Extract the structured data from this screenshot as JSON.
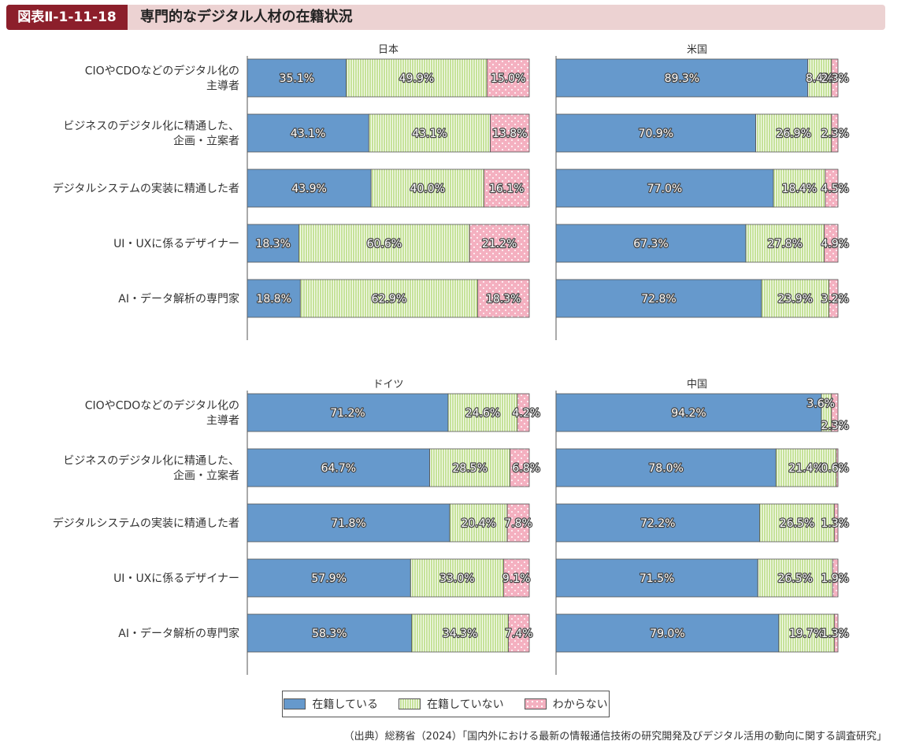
{
  "header": {
    "figure_number": "図表Ⅱ-1-11-18",
    "title": "専門的なデジタル人材の在籍状況"
  },
  "legend": [
    "在籍している",
    "在籍していない",
    "わからない"
  ],
  "source": "（出典）総務省（2024）「国内外における最新の情報通信技術の研究開発及びデジタル活用の動向に関する調査研究」",
  "colors": {
    "present": "#6699cc",
    "absent": "#c6e29a",
    "unknown": "#f4b0c0",
    "border": "#555555"
  },
  "chart_data": {
    "type": "bar",
    "orientation": "horizontal",
    "stacked": true,
    "unit": "%",
    "categories": [
      [
        "CIOやCDOなどのデジタル化の",
        "主導者"
      ],
      [
        "ビジネスのデジタル化に精通した、",
        "企画・立案者"
      ],
      [
        "デジタルシステムの実装に精通した者"
      ],
      [
        "UI・UXに係るデザイナー"
      ],
      [
        "AI・データ解析の専門家"
      ]
    ],
    "series_names": [
      "在籍している",
      "在籍していない",
      "わからない"
    ],
    "panels": [
      {
        "title": "日本",
        "values": [
          [
            35.1,
            49.9,
            15.0
          ],
          [
            43.1,
            43.1,
            13.8
          ],
          [
            43.9,
            40.0,
            16.1
          ],
          [
            18.3,
            60.6,
            21.2
          ],
          [
            18.8,
            62.9,
            18.3
          ]
        ],
        "labels": [
          [
            "35.1%",
            "49.9%",
            "15.0%"
          ],
          [
            "43.1%",
            "43.1%",
            "13.8%"
          ],
          [
            "43.9%",
            "40.0%",
            "16.1%"
          ],
          [
            "18.3%",
            "60.6%",
            "21.2%"
          ],
          [
            "18.8%",
            "62.9%",
            "18.3%"
          ]
        ]
      },
      {
        "title": "米国",
        "values": [
          [
            89.3,
            8.4,
            2.3
          ],
          [
            70.9,
            26.9,
            2.3
          ],
          [
            77.0,
            18.4,
            4.5
          ],
          [
            67.3,
            27.8,
            4.9
          ],
          [
            72.8,
            23.9,
            3.2
          ]
        ],
        "labels": [
          [
            "89.3%",
            "8.4%",
            "2.3%"
          ],
          [
            "70.9%",
            "26.9%",
            "2.3%"
          ],
          [
            "77.0%",
            "18.4%",
            "4.5%"
          ],
          [
            "67.3%",
            "27.8%",
            "4.9%"
          ],
          [
            "72.8%",
            "23.9%",
            "3.2%"
          ]
        ]
      },
      {
        "title": "ドイツ",
        "values": [
          [
            71.2,
            24.6,
            4.2
          ],
          [
            64.7,
            28.5,
            6.8
          ],
          [
            71.8,
            20.4,
            7.8
          ],
          [
            57.9,
            33.0,
            9.1
          ],
          [
            58.3,
            34.3,
            7.4
          ]
        ],
        "labels": [
          [
            "71.2%",
            "24.6%",
            "4.2%"
          ],
          [
            "64.7%",
            "28.5%",
            "6.8%"
          ],
          [
            "71.8%",
            "20.4%",
            "7.8%"
          ],
          [
            "57.9%",
            "33.0%",
            "9.1%"
          ],
          [
            "58.3%",
            "34.3%",
            "7.4%"
          ]
        ]
      },
      {
        "title": "中国",
        "values": [
          [
            94.2,
            3.6,
            2.3
          ],
          [
            78.0,
            21.4,
            0.6
          ],
          [
            72.2,
            26.5,
            1.3
          ],
          [
            71.5,
            26.5,
            1.9
          ],
          [
            79.0,
            19.7,
            1.3
          ]
        ],
        "labels": [
          [
            "94.2%",
            "3.6%",
            "2.3%"
          ],
          [
            "78.0%",
            "21.4%",
            "0.6%"
          ],
          [
            "72.2%",
            "26.5%",
            "1.3%"
          ],
          [
            "71.5%",
            "26.5%",
            "1.9%"
          ],
          [
            "79.0%",
            "19.7%",
            "1.3%"
          ]
        ]
      }
    ]
  }
}
